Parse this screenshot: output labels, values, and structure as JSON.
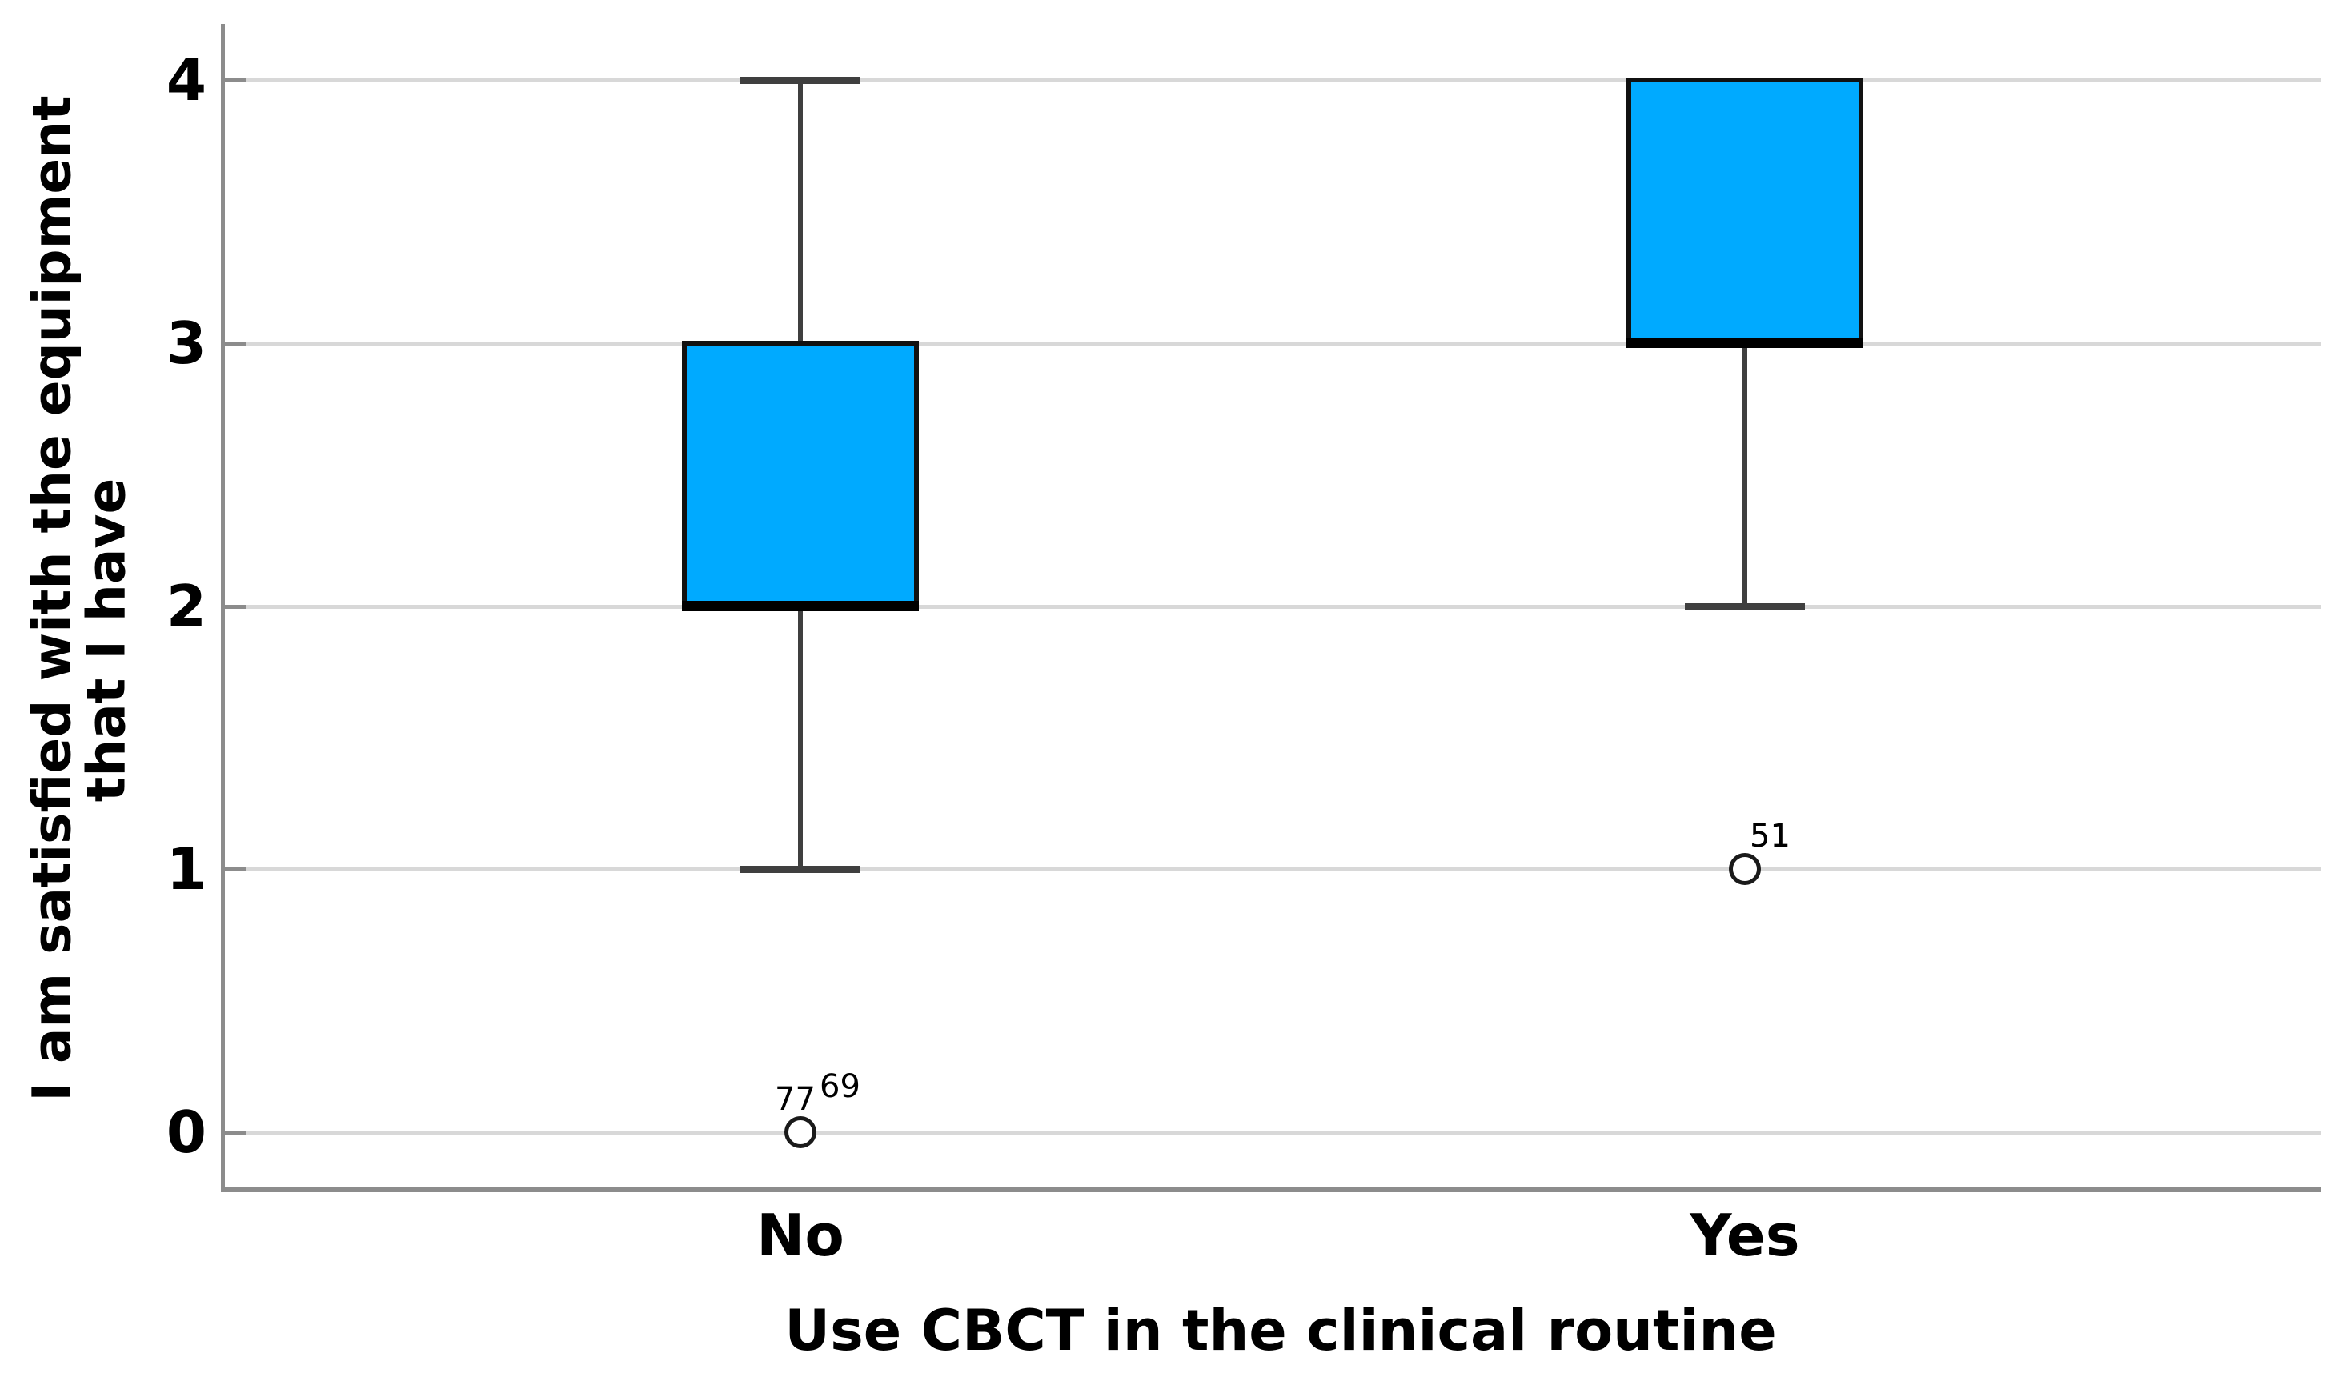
{
  "chart_data": {
    "type": "boxplot",
    "title": "",
    "xlabel": "Use CBCT in the clinical routine",
    "ylabel": "I am satisfied with the equipment that I have",
    "ylabel_lines": [
      "I am satisfied with the equipment",
      "that I have"
    ],
    "categories": [
      "No",
      "Yes"
    ],
    "y_ticks": [
      0,
      1,
      2,
      3,
      4
    ],
    "ylim": [
      -0.22,
      4.21
    ],
    "grid": "horizontal",
    "legend": "none",
    "series": [
      {
        "category": "No",
        "q1": 2,
        "median": 2,
        "q3": 3,
        "whisker_low": 1,
        "whisker_high": 4,
        "outliers": [
          {
            "value": 0,
            "labels": [
              "77",
              "69"
            ]
          }
        ]
      },
      {
        "category": "Yes",
        "q1": 3,
        "median": 3,
        "q3": 4,
        "whisker_low": 2,
        "whisker_high": null,
        "outliers": [
          {
            "value": 1,
            "labels": [
              "51"
            ]
          }
        ]
      }
    ],
    "colors": {
      "box_fill": "#00aaff",
      "box_border": "#111111",
      "median": "#000000",
      "whisker": "#3f3f3f",
      "grid": "#d8d8d8",
      "axis": "#8c8c8c",
      "text": "#000000",
      "outlier_stroke": "#1a1a1a",
      "background": "#ffffff"
    }
  }
}
